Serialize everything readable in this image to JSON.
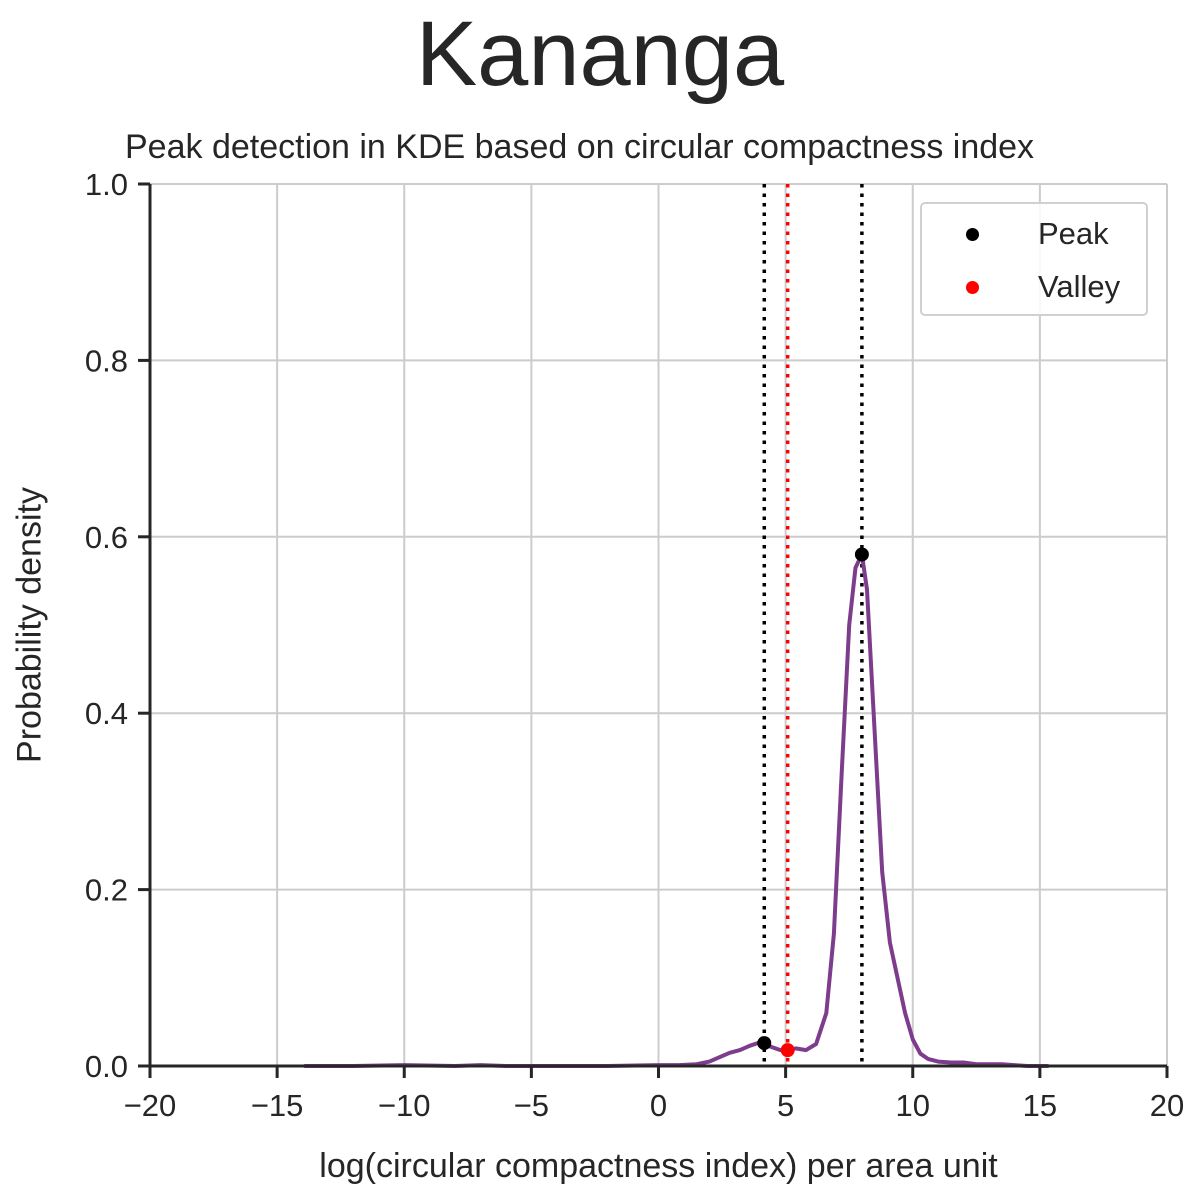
{
  "suptitle": "Kananga",
  "chart_data": {
    "type": "line",
    "title": "Peak detection in KDE based on circular compactness index",
    "xlabel": "log(circular compactness index) per area unit",
    "ylabel": "Probability density",
    "xlim": [
      -20,
      20
    ],
    "ylim": [
      0,
      1.0
    ],
    "xticks": [
      -20,
      -15,
      -10,
      -5,
      0,
      5,
      10,
      15,
      20
    ],
    "xtick_labels": [
      "−20",
      "−15",
      "−10",
      "−5",
      "0",
      "5",
      "10",
      "15",
      "20"
    ],
    "yticks": [
      0.0,
      0.2,
      0.4,
      0.6,
      0.8,
      1.0
    ],
    "ytick_labels": [
      "0.0",
      "0.2",
      "0.4",
      "0.6",
      "0.8",
      "1.0"
    ],
    "grid": true,
    "legend_position": "top-right",
    "colors": {
      "kde": "#7d3c8c",
      "peak": "#000000",
      "valley": "#ff0000",
      "grid": "#cccccc",
      "axis": "#262626"
    },
    "kde_curve": {
      "x": [
        -13.9,
        -12,
        -10,
        -8,
        -7,
        -6,
        -4,
        -2,
        0,
        0.8,
        1.5,
        2.0,
        2.4,
        2.8,
        3.2,
        3.6,
        3.9,
        4.16,
        4.4,
        4.8,
        5.08,
        5.4,
        5.8,
        6.2,
        6.6,
        6.9,
        7.2,
        7.5,
        7.75,
        8.0,
        8.2,
        8.5,
        8.8,
        9.1,
        9.4,
        9.7,
        10.0,
        10.3,
        10.6,
        11.0,
        11.5,
        12.0,
        12.5,
        13.0,
        13.5,
        14.0,
        14.5,
        15.3
      ],
      "y": [
        0.0,
        0.0,
        0.001,
        0.0,
        0.001,
        0.0,
        0.0,
        0.0,
        0.001,
        0.001,
        0.002,
        0.005,
        0.01,
        0.015,
        0.018,
        0.023,
        0.026,
        0.026,
        0.022,
        0.018,
        0.018,
        0.02,
        0.018,
        0.025,
        0.06,
        0.15,
        0.33,
        0.5,
        0.565,
        0.58,
        0.54,
        0.38,
        0.22,
        0.14,
        0.1,
        0.06,
        0.03,
        0.014,
        0.008,
        0.005,
        0.004,
        0.004,
        0.002,
        0.002,
        0.002,
        0.001,
        0.0,
        0.0
      ]
    },
    "peaks": [
      {
        "x": 4.16,
        "y": 0.026
      },
      {
        "x": 8.0,
        "y": 0.58
      }
    ],
    "valleys": [
      {
        "x": 5.08,
        "y": 0.018
      }
    ],
    "legend": [
      {
        "label": "Peak",
        "color": "#000000"
      },
      {
        "label": "Valley",
        "color": "#ff0000"
      }
    ]
  }
}
